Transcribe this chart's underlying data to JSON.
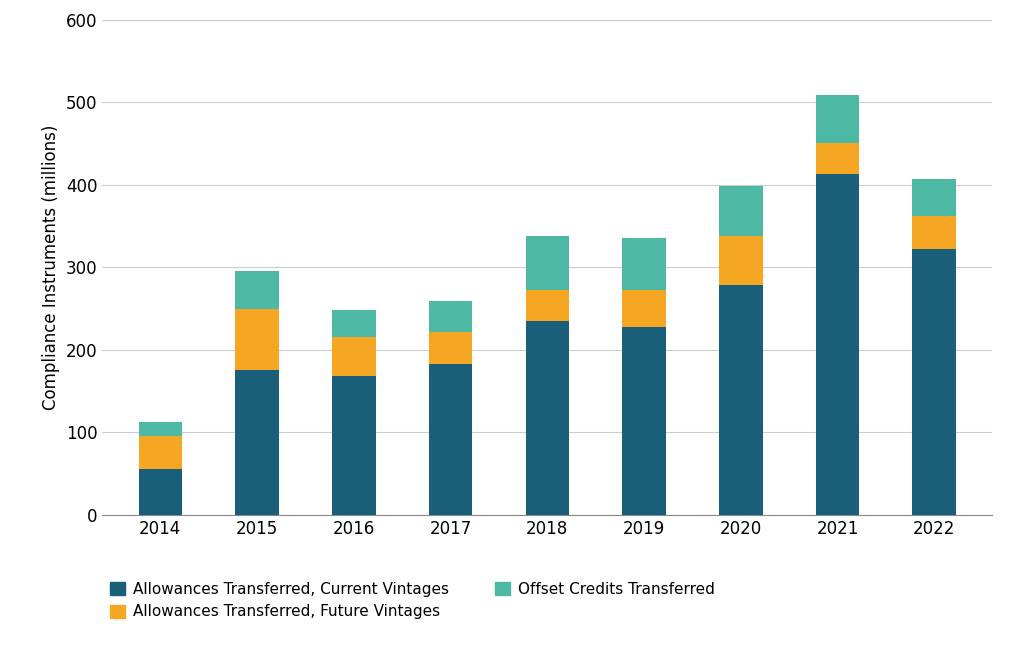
{
  "years": [
    "2014",
    "2015",
    "2016",
    "2017",
    "2018",
    "2019",
    "2020",
    "2021",
    "2022"
  ],
  "current_vintages": [
    55,
    175,
    168,
    183,
    235,
    228,
    278,
    413,
    322
  ],
  "future_vintages": [
    40,
    75,
    48,
    38,
    38,
    45,
    60,
    38,
    40
  ],
  "offset_credits": [
    18,
    45,
    32,
    38,
    65,
    62,
    60,
    58,
    45
  ],
  "color_current": "#1a5f7a",
  "color_future": "#f5a623",
  "color_offset": "#4db8a4",
  "ylabel": "Compliance Instruments (millions)",
  "ylim_min": 0,
  "ylim_max": 600,
  "yticks": [
    0,
    100,
    200,
    300,
    400,
    500,
    600
  ],
  "legend_current": "Allowances Transferred, Current Vintages",
  "legend_future": "Allowances Transferred, Future Vintages",
  "legend_offset": "Offset Credits Transferred",
  "background_color": "#ffffff",
  "bar_width": 0.45
}
